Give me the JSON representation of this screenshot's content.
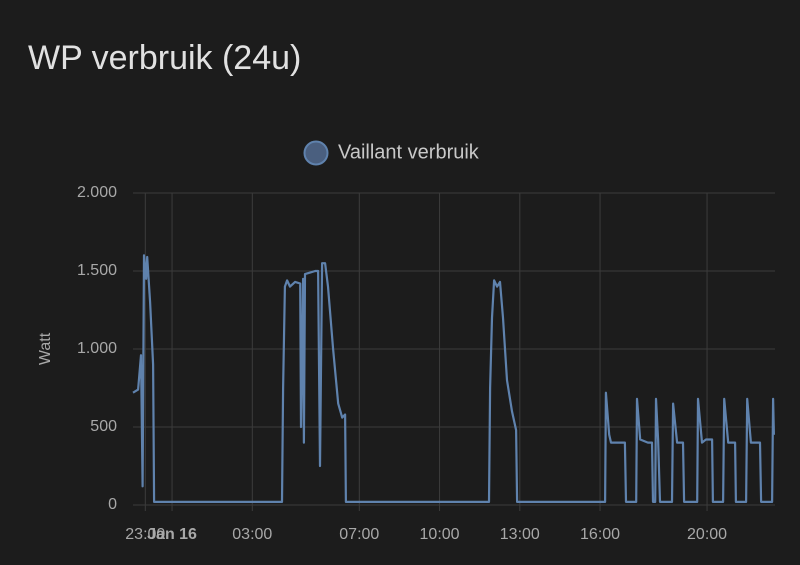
{
  "chart_data": {
    "type": "line",
    "title": "WP verbruik (24u)",
    "ylabel": "Watt",
    "x": [
      -1.46,
      -1.27,
      -1.16,
      -1.1,
      -1.05,
      -0.97,
      -0.93,
      -0.82,
      -0.71,
      -0.67,
      4.11,
      4.15,
      4.22,
      4.3,
      4.41,
      4.6,
      4.79,
      4.82,
      4.9,
      4.93,
      4.97,
      5.16,
      5.35,
      5.46,
      5.53,
      5.61,
      5.72,
      5.83,
      6.02,
      6.21,
      6.36,
      6.47,
      6.5,
      11.85,
      11.89,
      11.96,
      12.04,
      12.15,
      12.26,
      12.37,
      12.52,
      12.71,
      12.86,
      12.9,
      16.19,
      16.22,
      16.34,
      16.41,
      16.93,
      16.97,
      17.35,
      17.38,
      17.5,
      17.79,
      17.94,
      17.98,
      18.06,
      18.09,
      18.17,
      18.24,
      18.69,
      18.73,
      18.88,
      19.1,
      19.14,
      19.63,
      19.66,
      19.81,
      19.96,
      20.19,
      20.22,
      20.6,
      20.64,
      20.79,
      21.05,
      21.08,
      21.46,
      21.5,
      21.64,
      21.79,
      21.98,
      22.02,
      22.43,
      22.47,
      22.5
    ],
    "series": [
      {
        "name": "Vaillant verbruik",
        "color": "#5f82ad",
        "values": [
          720,
          740,
          960,
          120,
          1600,
          1450,
          1590,
          1300,
          900,
          20,
          20,
          750,
          1400,
          1440,
          1400,
          1430,
          1420,
          500,
          1450,
          400,
          1480,
          1490,
          1500,
          1500,
          250,
          1550,
          1550,
          1400,
          1000,
          650,
          560,
          580,
          20,
          20,
          750,
          1200,
          1440,
          1400,
          1430,
          1200,
          800,
          600,
          480,
          20,
          20,
          720,
          450,
          400,
          400,
          20,
          20,
          680,
          420,
          400,
          400,
          20,
          20,
          680,
          420,
          20,
          20,
          650,
          400,
          400,
          20,
          20,
          680,
          400,
          420,
          420,
          20,
          20,
          680,
          400,
          400,
          20,
          20,
          680,
          400,
          400,
          400,
          20,
          20,
          680,
          450
        ]
      }
    ],
    "xlim": [
      -1.46,
      22.54
    ],
    "xticks": [
      {
        "value": -1,
        "label": "23:00"
      },
      {
        "value": 0,
        "label": "Jan 16"
      },
      {
        "value": 3,
        "label": "03:00"
      },
      {
        "value": 7,
        "label": "07:00"
      },
      {
        "value": 10,
        "label": "10:00"
      },
      {
        "value": 13,
        "label": "13:00"
      },
      {
        "value": 16,
        "label": "16:00"
      },
      {
        "value": 20,
        "label": "20:00"
      }
    ],
    "ylim": [
      0,
      2000
    ],
    "yticks": [
      0,
      500,
      {
        "value": 1000,
        "label": "1.000"
      },
      {
        "value": 1500,
        "label": "1.500"
      },
      {
        "value": 2000,
        "label": "2.000"
      }
    ],
    "grid": true
  }
}
